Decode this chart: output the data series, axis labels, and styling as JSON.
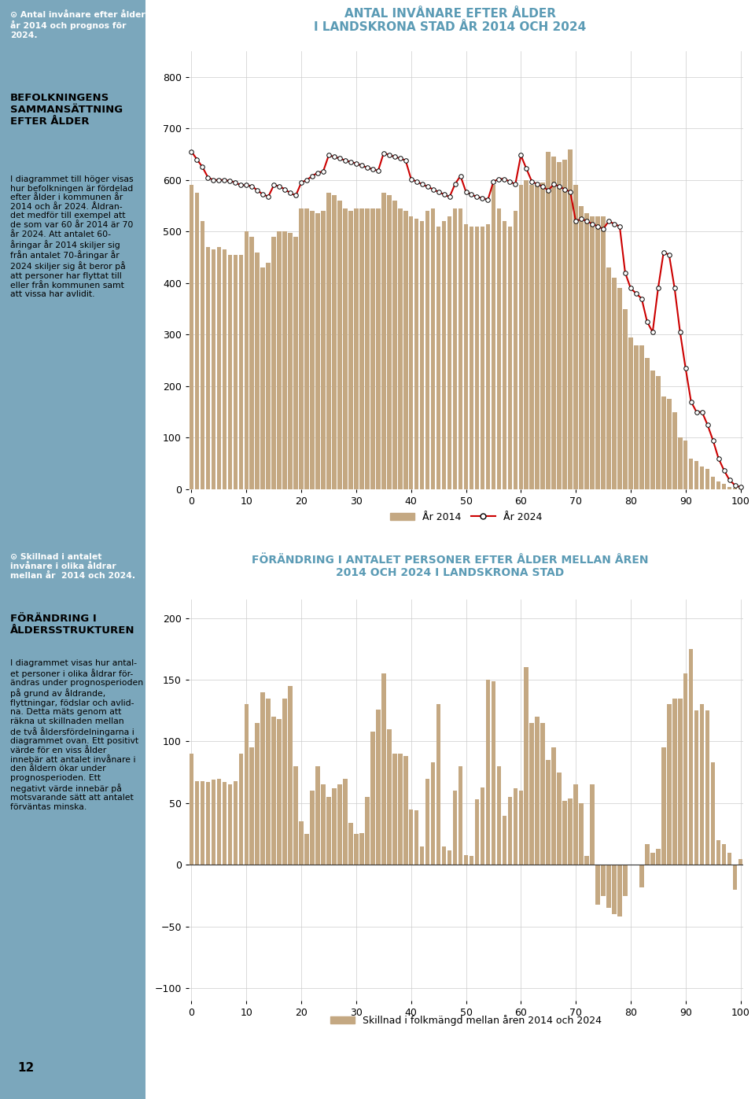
{
  "title1": "ANTAL INVÅNARE EFTER ÅLDER\nI LANDSKRONA STAD ÅR 2014 OCH 2024",
  "title2": "FÖRÄNDRING I ANTALET PERSONER EFTER ÅLDER MELLAN ÅREN\n2014 OCH 2024 I LANDSKRONA STAD",
  "chart1_yticks": [
    0,
    100,
    200,
    300,
    400,
    500,
    600,
    700,
    800
  ],
  "chart1_ylim": [
    0,
    850
  ],
  "chart2_ylim": [
    -110,
    215
  ],
  "chart2_yticks": [
    -100,
    -50,
    0,
    50,
    100,
    150,
    200
  ],
  "xticks": [
    0,
    10,
    20,
    30,
    40,
    50,
    60,
    70,
    80,
    90,
    100
  ],
  "xlim": [
    -0.5,
    100.5
  ],
  "bar_color": "#C4A882",
  "line2024_color": "#CC0000",
  "sidebar_color": "#7BA7BC",
  "title_color": "#5B9BB5",
  "legend1_bar": "År 2014",
  "legend1_line": "År 2024",
  "legend2_bar": "Skillnad i folkmängd mellan åren 2014 och 2024",
  "bar2014": [
    590,
    575,
    520,
    470,
    465,
    470,
    465,
    455,
    455,
    455,
    500,
    490,
    460,
    430,
    440,
    490,
    500,
    500,
    498,
    490,
    545,
    545,
    540,
    535,
    540,
    575,
    570,
    560,
    545,
    540,
    545,
    545,
    545,
    545,
    545,
    575,
    570,
    560,
    545,
    540,
    530,
    525,
    520,
    540,
    545,
    510,
    520,
    530,
    545,
    545,
    515,
    510,
    510,
    510,
    515,
    590,
    545,
    520,
    510,
    540,
    590,
    600,
    590,
    595,
    595,
    655,
    645,
    635,
    640,
    660,
    590,
    550,
    535,
    530,
    530,
    530,
    430,
    410,
    390,
    350,
    295,
    280,
    280,
    255,
    230,
    220,
    180,
    175,
    150,
    100,
    95,
    60,
    55,
    45,
    40,
    25,
    15,
    10,
    5,
    3,
    2
  ],
  "line2024": [
    655,
    640,
    625,
    605,
    600,
    600,
    600,
    598,
    595,
    590,
    590,
    588,
    580,
    572,
    568,
    590,
    588,
    582,
    575,
    570,
    595,
    600,
    608,
    614,
    617,
    648,
    645,
    642,
    638,
    635,
    632,
    628,
    624,
    621,
    618,
    652,
    649,
    645,
    642,
    638,
    602,
    597,
    592,
    587,
    582,
    577,
    572,
    567,
    592,
    608,
    577,
    572,
    567,
    565,
    562,
    597,
    602,
    602,
    597,
    592,
    648,
    622,
    597,
    592,
    587,
    580,
    592,
    587,
    582,
    577,
    520,
    525,
    520,
    515,
    510,
    505,
    520,
    515,
    510,
    420,
    390,
    380,
    370,
    325,
    305,
    390,
    460,
    455,
    390,
    305,
    235,
    170,
    150,
    150,
    125,
    95,
    60,
    37,
    18,
    8,
    4
  ],
  "bar_diff": [
    90,
    68,
    68,
    67,
    69,
    70,
    67,
    65,
    68,
    90,
    130,
    95,
    115,
    140,
    135,
    120,
    118,
    135,
    145,
    80,
    35,
    25,
    60,
    80,
    65,
    55,
    62,
    65,
    70,
    34,
    25,
    26,
    55,
    108,
    126,
    155,
    110,
    90,
    90,
    88,
    45,
    44,
    15,
    70,
    83,
    130,
    15,
    12,
    60,
    80,
    8,
    7,
    53,
    63,
    150,
    149,
    80,
    40,
    55,
    62,
    60,
    160,
    115,
    120,
    115,
    85,
    95,
    75,
    52,
    54,
    65,
    50,
    7,
    65,
    -32,
    -25,
    -35,
    -40,
    -42,
    -25,
    0,
    0,
    -18,
    17,
    10,
    13,
    95,
    130,
    135,
    135,
    155,
    175,
    125,
    130,
    125,
    83,
    20,
    17,
    10,
    -20,
    5
  ]
}
